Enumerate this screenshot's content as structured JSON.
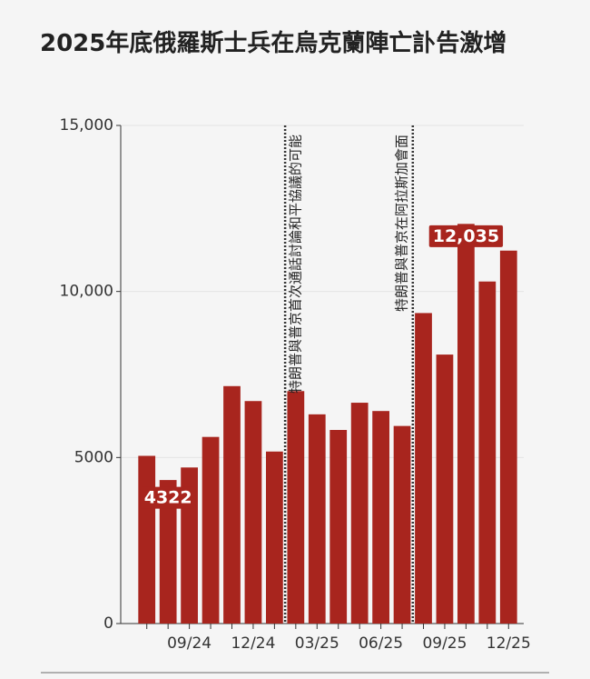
{
  "chart_data": {
    "type": "bar",
    "title": "2025年底俄羅斯士兵在烏克蘭陣亡訃告激增",
    "categories": [
      null,
      null,
      "09/24",
      null,
      null,
      "12/24",
      null,
      null,
      "03/25",
      null,
      null,
      "06/25",
      null,
      null,
      "09/25",
      null,
      null,
      "12/25"
    ],
    "values": [
      5050,
      4322,
      4700,
      5620,
      7150,
      6700,
      5180,
      7000,
      6300,
      5830,
      6650,
      6400,
      5950,
      9350,
      8100,
      12035,
      10300,
      11230
    ],
    "value_labels": [
      null,
      "4322",
      null,
      null,
      null,
      null,
      null,
      null,
      null,
      null,
      null,
      null,
      null,
      null,
      null,
      "12,035",
      null,
      null
    ],
    "color": "#a8251e",
    "ylim": [
      0,
      15000
    ],
    "yticks": [
      0,
      5000,
      {
        "value": 10000,
        "label": "10,000"
      },
      {
        "value": 15000,
        "label": "15,000"
      }
    ],
    "grid": true,
    "annotations": [
      {
        "text": "特朗普與普京首次通話討論和平協議的可能",
        "after_category": 6
      },
      {
        "text": "特朗普與普京在阿拉斯加會面",
        "after_category": 12
      }
    ]
  }
}
